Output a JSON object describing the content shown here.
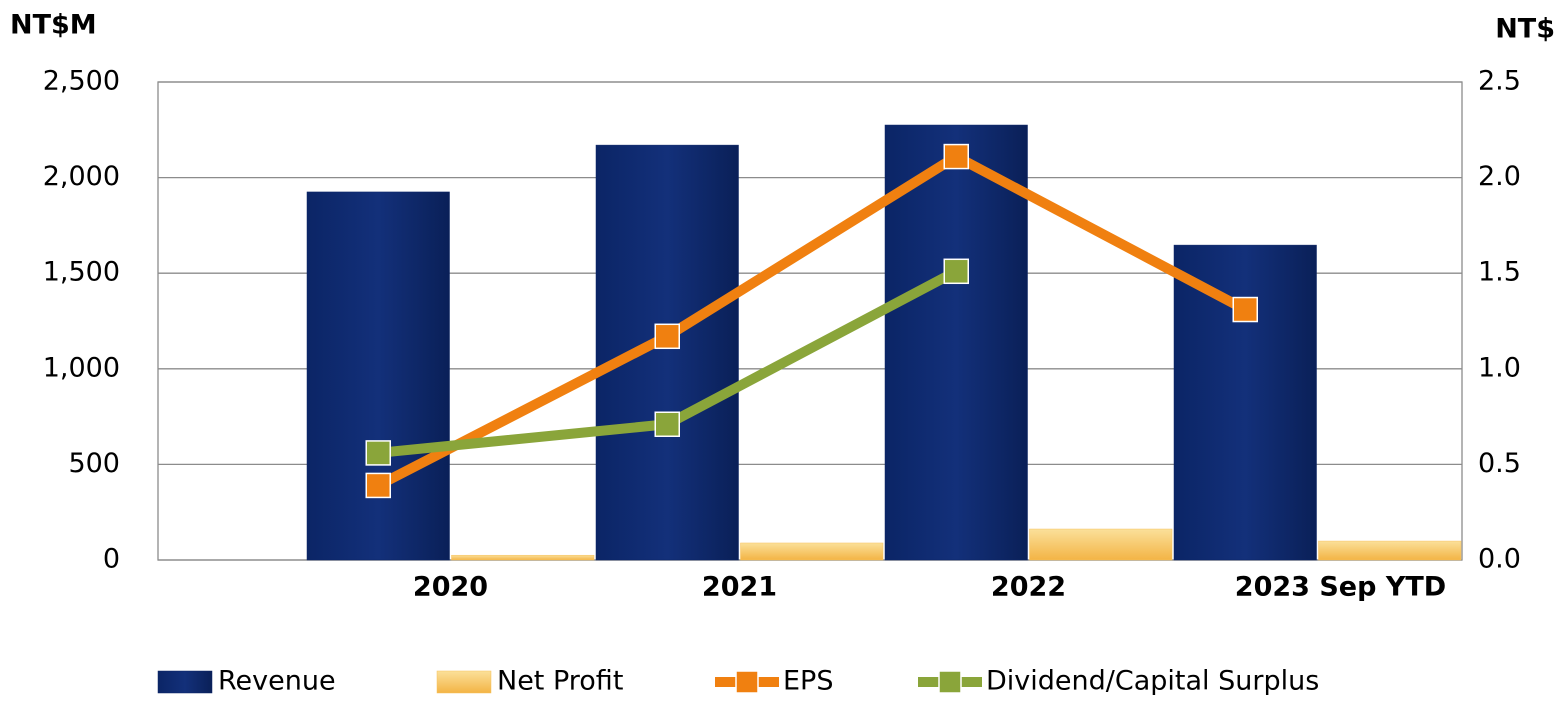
{
  "chart_data": {
    "type": "bar",
    "y_label": "NT$M",
    "y2_label": "NT$",
    "categories": [
      "2020",
      "2021",
      "2022",
      "2023 Sep YTD"
    ],
    "series": [
      {
        "name": "Revenue",
        "type": "bar",
        "color": "#0b2566",
        "values": [
          1925,
          2170,
          2275,
          1647
        ]
      },
      {
        "name": "Net Profit",
        "type": "bar",
        "color": "#f7c25f",
        "values": [
          25,
          89,
          162,
          99
        ]
      },
      {
        "name": "EPS",
        "type": "line",
        "axis": "y2",
        "color": "#f08010",
        "values": [
          0.39,
          1.17,
          2.11,
          1.31
        ]
      },
      {
        "name": "Dividend/Capital Surplus",
        "type": "line",
        "axis": "y2",
        "color": "#8aa53a",
        "values": [
          0.56,
          0.71,
          1.51,
          null
        ]
      }
    ],
    "ylim": [
      0,
      2500
    ],
    "yticks": [
      0,
      500,
      {
        "value": 1000,
        "label": "1,000"
      },
      {
        "value": 1500,
        "label": "1,500"
      },
      {
        "value": 2000,
        "label": "2,000"
      },
      {
        "value": 2500,
        "label": "2,500"
      }
    ],
    "y2lim": [
      0,
      2.5
    ],
    "y2ticks": [
      {
        "value": 0,
        "label": "0.0"
      },
      0.5,
      {
        "value": 1,
        "label": "1.0"
      },
      1.5,
      {
        "value": 2,
        "label": "2.0"
      },
      2.5
    ],
    "grid": true,
    "legend": "bottom"
  }
}
